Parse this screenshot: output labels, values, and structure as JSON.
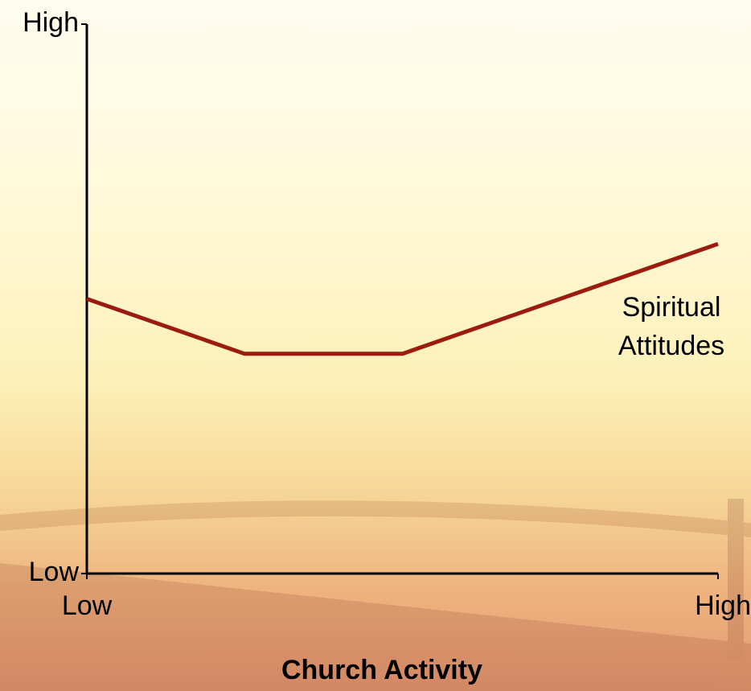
{
  "chart_data": {
    "type": "line",
    "x_label": "Church Activity",
    "xlim": [
      0,
      10
    ],
    "xticks": [
      {
        "value": 0,
        "label": "Low"
      },
      {
        "value": 10,
        "label": "High"
      }
    ],
    "ylim": [
      0,
      10
    ],
    "yticks": [
      {
        "value": 0,
        "label": "Low"
      },
      {
        "value": 10,
        "label": "High"
      }
    ],
    "x": [
      0,
      2.5,
      5,
      10
    ],
    "series": [
      {
        "name": "Spiritual Attitudes",
        "color": "#9b1c0f",
        "values": [
          5,
          4,
          4,
          6
        ]
      }
    ],
    "grid": false
  }
}
